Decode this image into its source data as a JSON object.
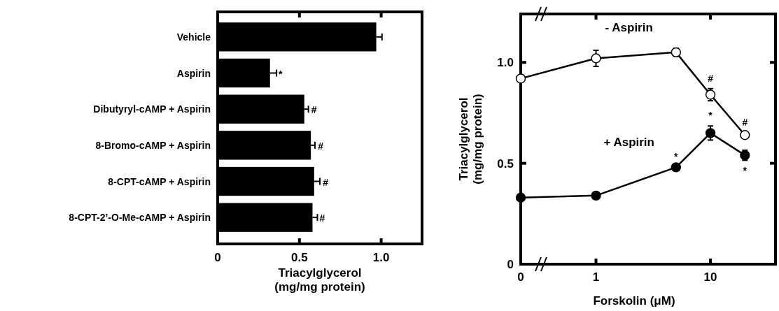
{
  "chart_data": [
    {
      "type": "bar",
      "orientation": "horizontal",
      "categories": [
        "Vehicle",
        "Aspirin",
        "Dibutyryl-cAMP + Aspirin",
        "8-Bromo-cAMP + Aspirin",
        "8-CPT-cAMP + Aspirin",
        "8-CPT-2’-O-Me-cAMP + Aspirin"
      ],
      "values": [
        0.97,
        0.32,
        0.53,
        0.57,
        0.59,
        0.58
      ],
      "errors": [
        0.035,
        0.04,
        0.025,
        0.025,
        0.035,
        0.03
      ],
      "color": "#000000",
      "xlim": [
        0,
        1.25
      ],
      "xticks": [
        0,
        0.5,
        {
          "value": 1,
          "label": "1.0"
        }
      ],
      "xlabel": "Triacylglycerol\n(mg/mg protein)",
      "annotations": [
        {
          "text": "*",
          "x": 0.36,
          "y": "Aspirin"
        },
        {
          "text": "#",
          "x": 0.56,
          "y": "Dibutyryl-cAMP + Aspirin"
        },
        {
          "text": "#",
          "x": 0.6,
          "y": "8-Bromo-cAMP + Aspirin"
        },
        {
          "text": "#",
          "x": 0.63,
          "y": "8-CPT-cAMP + Aspirin"
        },
        {
          "text": "#",
          "x": 0.61,
          "y": "8-CPT-2’-O-Me-cAMP + Aspirin"
        }
      ]
    },
    {
      "type": "line",
      "x": [
        0.22,
        1,
        5,
        10,
        20
      ],
      "log": "x",
      "marker": "circle",
      "xlim": [
        0.22,
        37
      ],
      "xticks": [
        {
          "value": 0.22,
          "label": "0"
        },
        1,
        10
      ],
      "ylim": [
        0,
        1.24
      ],
      "yticks": [
        0,
        0.5,
        {
          "value": 1,
          "label": "1.0"
        }
      ],
      "xlabel": "Forskolin (μM)",
      "ylabel": "Triacylglycerol\n(mg/mg protein)",
      "series": [
        {
          "name": "- Aspirin",
          "color": "#ffffff",
          "values": [
            0.92,
            1.02,
            1.05,
            0.84,
            0.64
          ],
          "errors": [
            null,
            0.04,
            0.02,
            0.03,
            0.01
          ]
        },
        {
          "name": "+ Aspirin",
          "color": "#000000",
          "values": [
            0.33,
            0.34,
            0.48,
            0.65,
            0.54
          ],
          "errors": [
            null,
            null,
            null,
            0.035,
            0.025
          ]
        }
      ],
      "annotations": [
        {
          "text": "#",
          "x": 10,
          "y": 0.87
        },
        {
          "text": "#",
          "x": 20,
          "y": 0.65
        },
        {
          "text": "*",
          "x": 5,
          "y": 0.48
        },
        {
          "text": "*",
          "x": 10,
          "y": 0.685
        },
        {
          "text": "*",
          "x": 20,
          "y": 0.515
        }
      ]
    }
  ]
}
